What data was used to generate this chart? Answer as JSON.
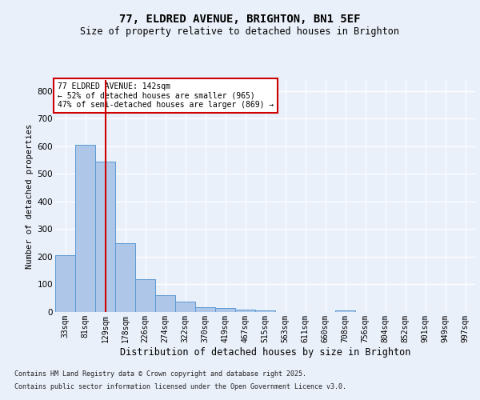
{
  "title1": "77, ELDRED AVENUE, BRIGHTON, BN1 5EF",
  "title2": "Size of property relative to detached houses in Brighton",
  "xlabel": "Distribution of detached houses by size in Brighton",
  "ylabel": "Number of detached properties",
  "bin_labels": [
    "33sqm",
    "81sqm",
    "129sqm",
    "178sqm",
    "226sqm",
    "274sqm",
    "322sqm",
    "370sqm",
    "419sqm",
    "467sqm",
    "515sqm",
    "563sqm",
    "611sqm",
    "660sqm",
    "708sqm",
    "756sqm",
    "804sqm",
    "852sqm",
    "901sqm",
    "949sqm",
    "997sqm"
  ],
  "bar_values": [
    205,
    605,
    545,
    250,
    120,
    62,
    37,
    18,
    15,
    10,
    5,
    1,
    0,
    0,
    5,
    0,
    0,
    0,
    0,
    0,
    0
  ],
  "bar_color": "#aec6e8",
  "bar_edgecolor": "#5b9bd5",
  "ylim": [
    0,
    840
  ],
  "yticks": [
    0,
    100,
    200,
    300,
    400,
    500,
    600,
    700,
    800
  ],
  "vline_x": 2,
  "vline_color": "#cc0000",
  "annotation_title": "77 ELDRED AVENUE: 142sqm",
  "annotation_line1": "← 52% of detached houses are smaller (965)",
  "annotation_line2": "47% of semi-detached houses are larger (869) →",
  "annotation_box_color": "#cc0000",
  "footer1": "Contains HM Land Registry data © Crown copyright and database right 2025.",
  "footer2": "Contains public sector information licensed under the Open Government Licence v3.0.",
  "bg_color": "#eaf0fa",
  "plot_bg_color": "#eaf0fa",
  "grid_color": "#ffffff"
}
